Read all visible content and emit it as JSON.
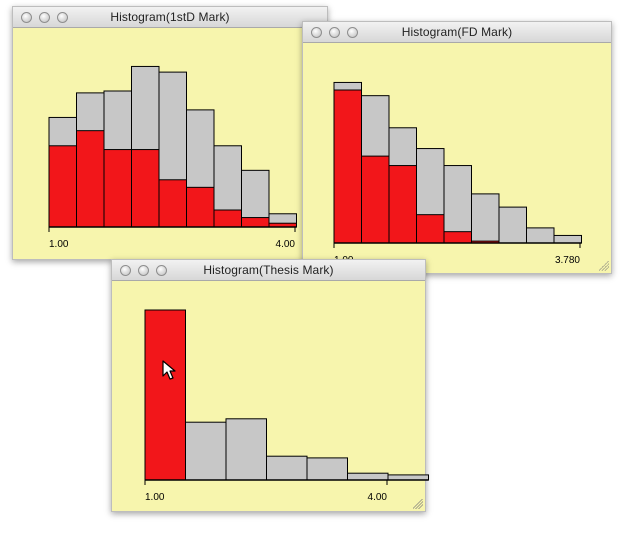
{
  "windows": [
    {
      "id": "firstD",
      "title": "Histogram(1stD Mark)",
      "axis": {
        "min_label": "1.00",
        "max_label": "4.00"
      },
      "colors": {
        "highlight": "#f2161a",
        "base": "#c7c7c7",
        "background": "#f7f5ad"
      },
      "chart_data": {
        "type": "bar",
        "categories": [
          "1",
          "2",
          "3",
          "4",
          "5",
          "6",
          "7",
          "8",
          "9"
        ],
        "series": [
          {
            "values": [
              58,
              71,
              72,
              85,
              82,
              62,
              43,
              30,
              7
            ],
            "color": "#c7c7c7"
          },
          {
            "values": [
              43,
              51,
              41,
              41,
              25,
              21,
              9,
              5,
              2
            ],
            "color": "#f2161a"
          }
        ],
        "ylim": [
          0,
          90
        ]
      }
    },
    {
      "id": "fd",
      "title": "Histogram(FD Mark)",
      "axis": {
        "min_label": "1.00",
        "max_label": "3.780"
      },
      "colors": {
        "highlight": "#f2161a",
        "base": "#c7c7c7",
        "background": "#f7f5ad"
      },
      "chart_data": {
        "type": "bar",
        "categories": [
          "1",
          "2",
          "3",
          "4",
          "5",
          "6",
          "7",
          "8",
          "9"
        ],
        "series": [
          {
            "values": [
              85,
              78,
              61,
              50,
              41,
              26,
              19,
              8,
              4
            ],
            "color": "#c7c7c7"
          },
          {
            "values": [
              81,
              46,
              41,
              15,
              6,
              1,
              0,
              0,
              0
            ],
            "color": "#f2161a"
          }
        ],
        "ylim": [
          0,
          90
        ]
      }
    },
    {
      "id": "thesis",
      "title": "Histogram(Thesis Mark)",
      "axis": {
        "min_label": "1.00",
        "max_label": "4.00"
      },
      "colors": {
        "highlight": "#f2161a",
        "base": "#c7c7c7",
        "background": "#f7f5ad"
      },
      "chart_data": {
        "type": "bar",
        "categories": [
          "1",
          "2",
          "3",
          "4",
          "5",
          "6",
          "7"
        ],
        "series": [
          {
            "values": [
              100,
              34,
              36,
              14,
              13,
              4,
              3
            ],
            "color": "#c7c7c7"
          },
          {
            "values": [
              100,
              0,
              0,
              0,
              0,
              0,
              0
            ],
            "color": "#f2161a"
          }
        ],
        "ylim": [
          0,
          100
        ]
      }
    }
  ]
}
